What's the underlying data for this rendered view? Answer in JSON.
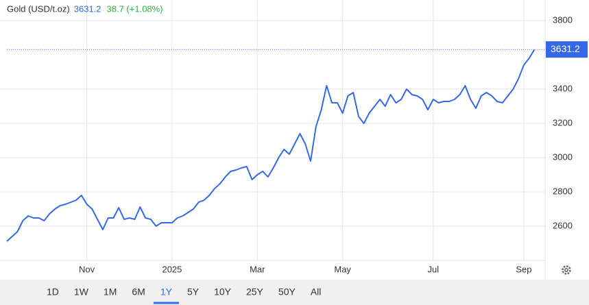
{
  "chart_data": {
    "type": "line",
    "title": "Gold (USD/t.oz)",
    "change": "38.7 (+1.08%)",
    "series": [
      {
        "name": "Gold",
        "color": "#3468e6",
        "values": [
          2512,
          2540,
          2568,
          2632,
          2660,
          2648,
          2648,
          2632,
          2672,
          2700,
          2720,
          2728,
          2740,
          2752,
          2780,
          2728,
          2700,
          2640,
          2580,
          2648,
          2648,
          2708,
          2640,
          2648,
          2640,
          2712,
          2648,
          2640,
          2600,
          2620,
          2620,
          2620,
          2648,
          2660,
          2680,
          2700,
          2740,
          2752,
          2780,
          2820,
          2848,
          2888,
          2920,
          2928,
          2940,
          2948,
          2872,
          2900,
          2920,
          2888,
          2940,
          3000,
          3048,
          3020,
          3080,
          3140,
          3080,
          2980,
          3180,
          3280,
          3420,
          3320,
          3320,
          3260,
          3360,
          3380,
          3240,
          3200,
          3260,
          3300,
          3340,
          3300,
          3368,
          3320,
          3340,
          3400,
          3368,
          3360,
          3340,
          3280,
          3340,
          3320,
          3328,
          3328,
          3340,
          3368,
          3420,
          3340,
          3288,
          3360,
          3380,
          3360,
          3328,
          3320,
          3360,
          3400,
          3460,
          3540,
          3580,
          3631.2
        ]
      }
    ],
    "xlim": [
      0,
      101
    ],
    "xticks": [
      {
        "value": 15,
        "label": "Nov"
      },
      {
        "value": 31,
        "label": "2025"
      },
      {
        "value": 47,
        "label": "Mar"
      },
      {
        "value": 63,
        "label": "May"
      },
      {
        "value": 80,
        "label": "Jul"
      },
      {
        "value": 97,
        "label": "Sep"
      }
    ],
    "ylim": [
      2400,
      3880
    ],
    "yticks": [
      2600,
      2800,
      3000,
      3200,
      3400,
      3800
    ],
    "grid": true,
    "range_buttons": [
      "1D",
      "1W",
      "1M",
      "6M",
      "1Y",
      "5Y",
      "10Y",
      "25Y",
      "50Y",
      "All"
    ],
    "selected_range": "1Y"
  }
}
